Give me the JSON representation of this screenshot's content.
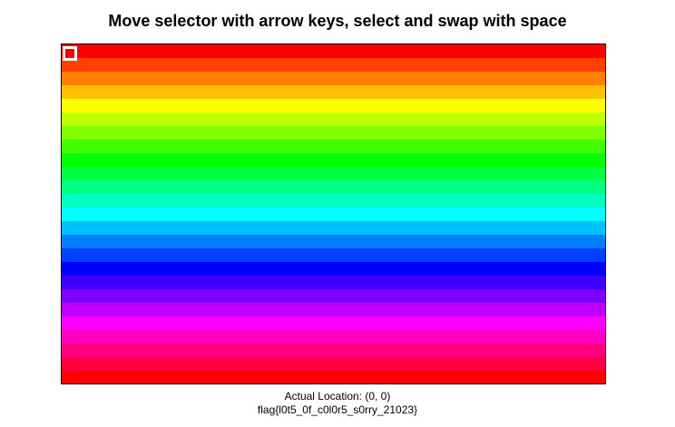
{
  "header": {
    "title": "Move selector with arrow keys, select and swap with space"
  },
  "grid": {
    "rows": 25,
    "row_colors": [
      "#ff0000",
      "#ff4000",
      "#ff8000",
      "#ffc000",
      "#ffff00",
      "#c0ff00",
      "#80ff00",
      "#40ff00",
      "#00ff00",
      "#00ff40",
      "#00ff80",
      "#00ffc0",
      "#00ffff",
      "#00c0ff",
      "#0080ff",
      "#0040ff",
      "#0000ff",
      "#4000ff",
      "#8000ff",
      "#c000ff",
      "#ff00ff",
      "#ff00c0",
      "#ff0080",
      "#ff0040",
      "#ff0000"
    ],
    "selector_color": "#ff0000"
  },
  "status": {
    "location": "Actual Location: (0, 0)",
    "flag": "flag{l0t5_0f_c0l0r5_s0rry_21023}"
  }
}
